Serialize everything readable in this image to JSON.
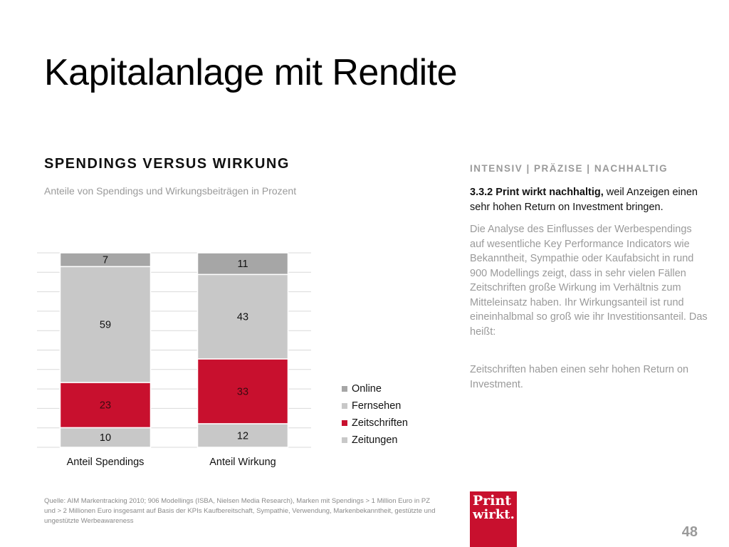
{
  "slide": {
    "title": "Kapitalanlage mit Rendite",
    "page_number": "48"
  },
  "chart_section": {
    "heading": "SPENDINGS VERSUS WIRKUNG",
    "subheading": "Anteile von Spendings und Wirkungsbeiträgen in Prozent"
  },
  "chart_data": {
    "type": "bar",
    "stacked": true,
    "title": "SPENDINGS VERSUS WIRKUNG",
    "subtitle": "Anteile von Spendings und Wirkungsbeiträgen in Prozent",
    "categories": [
      "Anteil Spendings",
      "Anteil Wirkung"
    ],
    "series": [
      {
        "name": "Zeitungen",
        "values": [
          10,
          12
        ],
        "color": "#c8c8c8"
      },
      {
        "name": "Zeitschriften",
        "values": [
          23,
          33
        ],
        "color": "#c8102e"
      },
      {
        "name": "Fernsehen",
        "values": [
          59,
          43
        ],
        "color": "#c8c8c8"
      },
      {
        "name": "Online",
        "values": [
          7,
          11
        ],
        "color": "#a6a6a6"
      }
    ],
    "legend_order": [
      "Online",
      "Fernsehen",
      "Zeitschriften",
      "Zeitungen"
    ],
    "ylim": [
      0,
      100
    ],
    "grid": true,
    "legend_position": "right"
  },
  "right_column": {
    "tagline": "INTENSIV | PRÄZISE | NACHHALTIG",
    "lead_bold": "3.3.2 Print wirkt nachhaltig,",
    "lead_text": " weil Anzeigen einen sehr hohen Return on Investment bringen.",
    "body": "Die Analyse des Einflusses der Werbespendings auf wesentliche Key Performance Indicators wie Bekanntheit, Sympathie oder Kaufabsicht in rund 900 Modellings zeigt, dass in sehr vielen Fällen Zeitschriften große Wirkung im Verhältnis zum Mitteleinsatz haben. Ihr Wirkungsanteil ist rund eineinhalbmal so groß wie ihr Investitionsanteil. Das heißt:",
    "conclusion": "Zeitschriften haben einen sehr hohen Return on Investment."
  },
  "source": {
    "text": "Quelle: AIM Markentracking 2010; 906 Modellings (ISBA, Nielsen Media Research), Marken mit Spendings > 1 Million Euro in PZ und > 2 Millionen Euro insgesamt auf Basis der KPIs Kaufbereitschaft, Sympathie, Verwendung, Markenbekanntheit, gestützte und ungestützte Werbeawareness"
  },
  "logo": {
    "line1": "Print",
    "line2": "wirkt.",
    "color": "#c8102e"
  }
}
